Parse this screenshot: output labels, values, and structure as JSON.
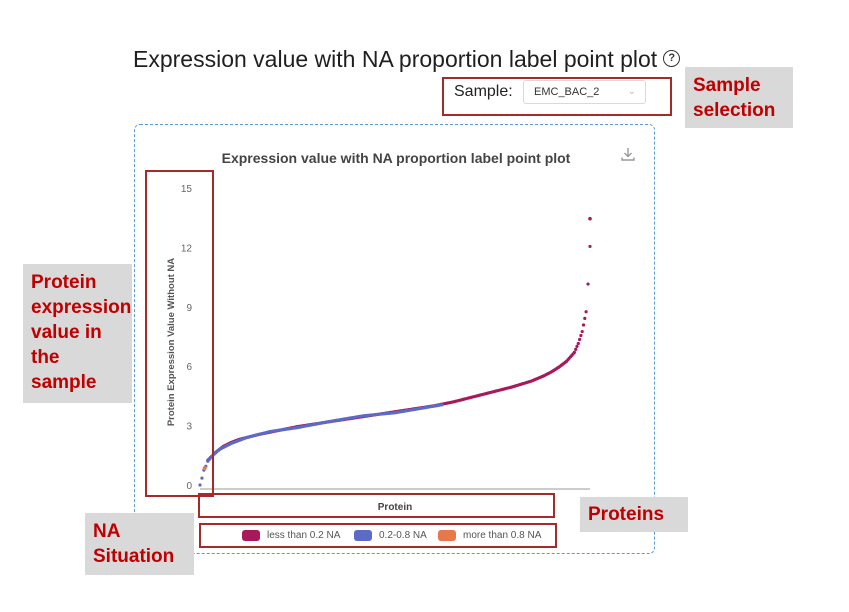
{
  "page": {
    "title": "Expression value with NA proportion label point plot"
  },
  "sample": {
    "label": "Sample:",
    "selected": "EMC_BAC_2"
  },
  "callouts": {
    "sample_selection": "Sample selection",
    "protein_expression": "Protein expression value in the sample",
    "proteins": "Proteins",
    "na_situation": "NA Situation"
  },
  "colors": {
    "less_than_0_2": "#a8195a",
    "between_0_2_0_8": "#5b6bc6",
    "more_than_0_8": "#e8774a",
    "highlight": "#a52a2a",
    "callout_text": "#c00000"
  },
  "icons": {
    "help": "question-circle-icon",
    "download": "download-icon",
    "dropdown": "chevron-down-icon"
  },
  "chart_data": {
    "type": "scatter",
    "title": "Expression value with NA proportion label point plot",
    "xlabel": "Protein",
    "ylabel": "Protein Expression Value Without NA",
    "ylim": [
      0,
      15
    ],
    "yticks": [
      "0",
      "3",
      "6",
      "9",
      "12",
      "15"
    ],
    "grid": false,
    "legend_position": "bottom",
    "legend": [
      {
        "name": "less than 0.2 NA",
        "color": "#a8195a"
      },
      {
        "name": "0.2-0.8 NA",
        "color": "#5b6bc6"
      },
      {
        "name": "more than 0.8 NA",
        "color": "#e8774a"
      }
    ],
    "x_index_range": [
      0,
      1
    ],
    "series": [
      {
        "name": "less than 0.2 NA",
        "x": [
          0.02,
          0.04,
          0.06,
          0.08,
          0.1,
          0.15,
          0.2,
          0.25,
          0.3,
          0.35,
          0.4,
          0.45,
          0.5,
          0.55,
          0.6,
          0.65,
          0.7,
          0.75,
          0.8,
          0.85,
          0.88,
          0.9,
          0.92,
          0.94,
          0.96,
          0.97,
          0.98,
          0.99,
          0.995,
          1.0
        ],
        "y": [
          1.3,
          1.7,
          2.0,
          2.2,
          2.35,
          2.6,
          2.8,
          3.0,
          3.15,
          3.3,
          3.45,
          3.6,
          3.75,
          3.9,
          4.05,
          4.25,
          4.5,
          4.75,
          5.0,
          5.3,
          5.55,
          5.75,
          6.0,
          6.3,
          6.75,
          7.2,
          7.8,
          8.8,
          10.2,
          12.1
        ]
      },
      {
        "name": "0.2-0.8 NA",
        "x": [
          0.0,
          0.005,
          0.01,
          0.015,
          0.02,
          0.03,
          0.05,
          0.08,
          0.12,
          0.18,
          0.25,
          0.33,
          0.42,
          0.5,
          0.62
        ],
        "y": [
          0.05,
          0.4,
          0.8,
          1.0,
          1.25,
          1.5,
          1.85,
          2.15,
          2.45,
          2.75,
          2.95,
          3.25,
          3.55,
          3.7,
          4.1
        ]
      },
      {
        "name": "more than 0.8 NA",
        "x": [
          0.012
        ],
        "y": [
          0.9
        ]
      }
    ],
    "outlier": {
      "name": "less than 0.2 NA",
      "x": 1.0,
      "y": 13.5
    }
  }
}
